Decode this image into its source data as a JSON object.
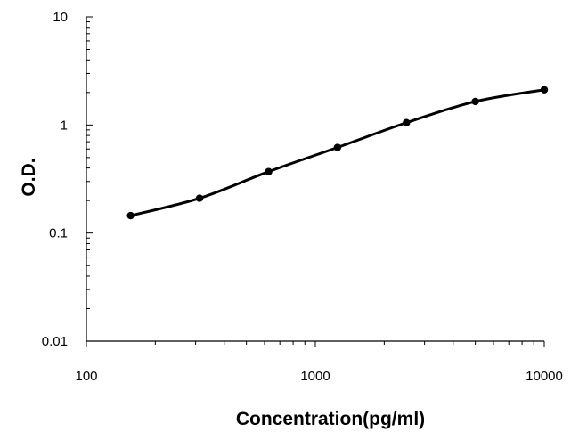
{
  "chart_data": {
    "type": "line",
    "title": "",
    "xlabel": "Concentration(pg/ml)",
    "ylabel": "O.D.",
    "x_scale": "log",
    "y_scale": "log",
    "xlim": [
      100,
      10000
    ],
    "ylim": [
      0.01,
      10
    ],
    "x_ticks": [
      "100",
      "1000",
      "10000"
    ],
    "y_ticks": [
      "0.01",
      "0.1",
      "1",
      "10"
    ],
    "grid": false,
    "legend": "none",
    "series": [
      {
        "color": "#000000",
        "x": [
          156,
          312,
          625,
          1250,
          2500,
          5000,
          10000
        ],
        "y": [
          0.145,
          0.21,
          0.37,
          0.62,
          1.05,
          1.65,
          2.12
        ]
      }
    ]
  }
}
